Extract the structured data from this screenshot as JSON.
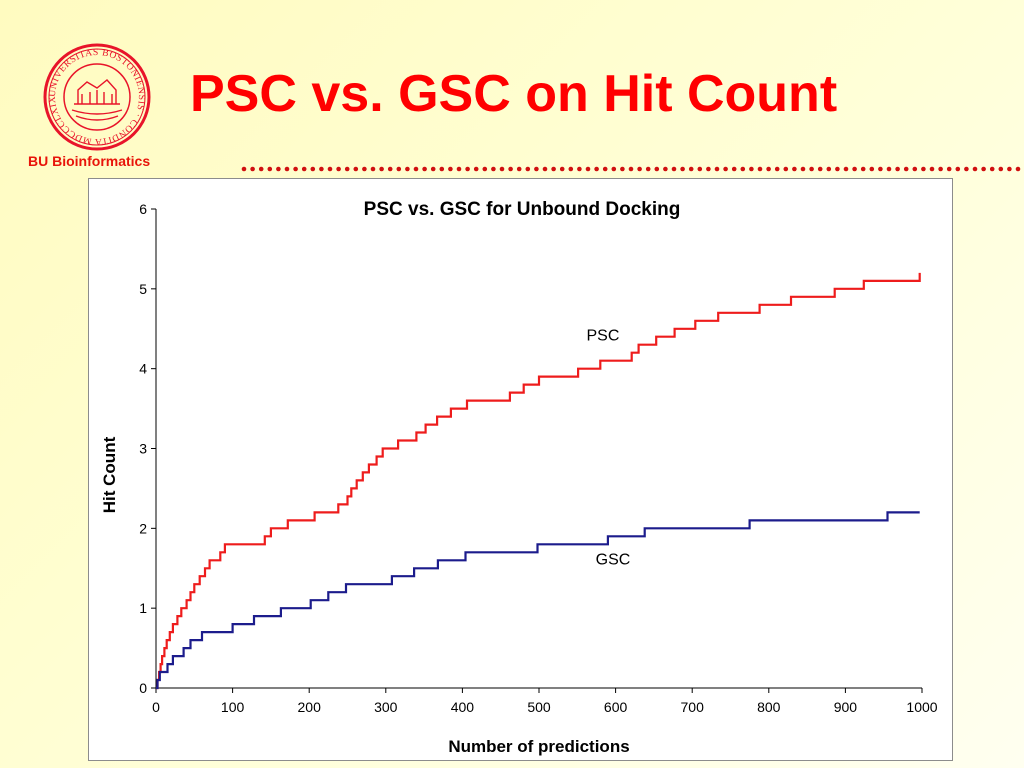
{
  "header": {
    "title": "PSC vs. GSC on Hit Count",
    "org_label": "BU Bioinformatics",
    "logo_text": "UNIVERSITAS BOSTONIENSIS · CONDITA MDCCCLXIX"
  },
  "colors": {
    "title": "#ff0000",
    "org_label": "#e8140a",
    "logo": "#e8142a",
    "dots": "#d01010",
    "psc": "#ee1c1c",
    "gsc": "#1c1c8c"
  },
  "chart_data": {
    "type": "line",
    "title": "PSC vs. GSC for Unbound Docking",
    "xlabel": "Number of predictions",
    "ylabel": "Hit Count",
    "xlim": [
      0,
      1000
    ],
    "ylim": [
      0,
      6
    ],
    "x_ticks": [
      "0",
      "100",
      "200",
      "300",
      "400",
      "500",
      "600",
      "700",
      "800",
      "900",
      "1000"
    ],
    "y_ticks": [
      "0",
      "1",
      "2",
      "3",
      "4",
      "5",
      "6"
    ],
    "grid": false,
    "legend": "inline labels",
    "series": [
      {
        "name": "PSC",
        "step": true,
        "points": [
          [
            0,
            0
          ],
          [
            2,
            0.1
          ],
          [
            4,
            0.2
          ],
          [
            6,
            0.3
          ],
          [
            8,
            0.4
          ],
          [
            11,
            0.5
          ],
          [
            14,
            0.6
          ],
          [
            18,
            0.7
          ],
          [
            22,
            0.8
          ],
          [
            28,
            0.9
          ],
          [
            33,
            1.0
          ],
          [
            40,
            1.1
          ],
          [
            45,
            1.2
          ],
          [
            50,
            1.3
          ],
          [
            57,
            1.4
          ],
          [
            64,
            1.5
          ],
          [
            70,
            1.6
          ],
          [
            84,
            1.7
          ],
          [
            90,
            1.8
          ],
          [
            142,
            1.9
          ],
          [
            150,
            2.0
          ],
          [
            172,
            2.1
          ],
          [
            207,
            2.2
          ],
          [
            238,
            2.3
          ],
          [
            250,
            2.4
          ],
          [
            255,
            2.5
          ],
          [
            262,
            2.6
          ],
          [
            270,
            2.7
          ],
          [
            278,
            2.8
          ],
          [
            288,
            2.9
          ],
          [
            296,
            3.0
          ],
          [
            316,
            3.1
          ],
          [
            340,
            3.2
          ],
          [
            352,
            3.3
          ],
          [
            367,
            3.4
          ],
          [
            385,
            3.5
          ],
          [
            406,
            3.6
          ],
          [
            462,
            3.7
          ],
          [
            480,
            3.8
          ],
          [
            500,
            3.9
          ],
          [
            551,
            4.0
          ],
          [
            580,
            4.1
          ],
          [
            621,
            4.2
          ],
          [
            630,
            4.3
          ],
          [
            653,
            4.4
          ],
          [
            677,
            4.5
          ],
          [
            704,
            4.6
          ],
          [
            734,
            4.7
          ],
          [
            788,
            4.8
          ],
          [
            829,
            4.9
          ],
          [
            886,
            5.0
          ],
          [
            924,
            5.1
          ],
          [
            997,
            5.2
          ]
        ],
        "end_x": 997
      },
      {
        "name": "GSC",
        "step": true,
        "points": [
          [
            0,
            0
          ],
          [
            2,
            0.1
          ],
          [
            5,
            0.2
          ],
          [
            15,
            0.3
          ],
          [
            22,
            0.4
          ],
          [
            36,
            0.5
          ],
          [
            45,
            0.6
          ],
          [
            60,
            0.7
          ],
          [
            100,
            0.8
          ],
          [
            128,
            0.9
          ],
          [
            163,
            1.0
          ],
          [
            202,
            1.1
          ],
          [
            225,
            1.2
          ],
          [
            248,
            1.3
          ],
          [
            308,
            1.4
          ],
          [
            337,
            1.5
          ],
          [
            368,
            1.6
          ],
          [
            404,
            1.7
          ],
          [
            498,
            1.8
          ],
          [
            590,
            1.9
          ],
          [
            638,
            2.0
          ],
          [
            775,
            2.1
          ],
          [
            955,
            2.2
          ]
        ],
        "end_x": 997
      }
    ],
    "labels": [
      {
        "text": "PSC",
        "x": 562,
        "y": 4.35
      },
      {
        "text": "GSC",
        "x": 574,
        "y": 1.55
      }
    ]
  }
}
